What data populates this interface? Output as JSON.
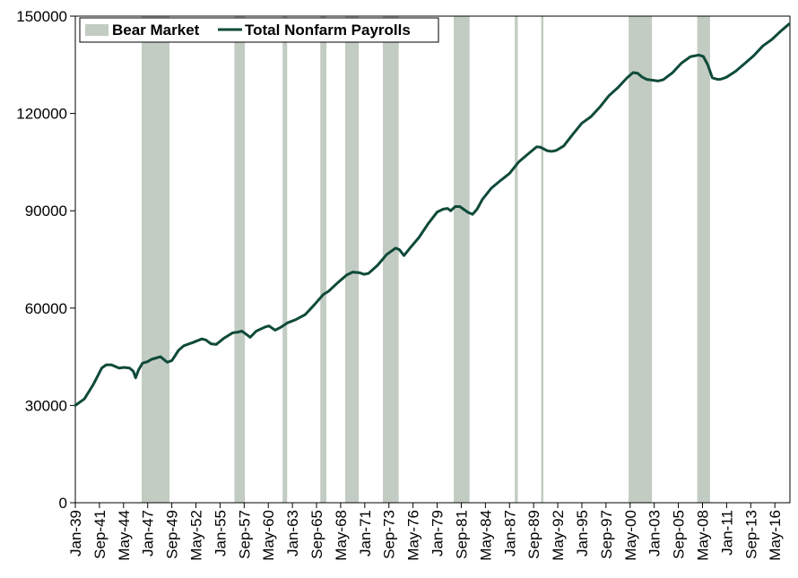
{
  "chart_data": {
    "type": "line",
    "title": "",
    "xlabel": "",
    "ylabel": "",
    "ylim": [
      0,
      150000
    ],
    "y_ticks": [
      0,
      30000,
      60000,
      90000,
      120000,
      150000
    ],
    "y_tick_labels": [
      "0",
      "30000",
      "60000",
      "90000",
      "120000",
      "150000"
    ],
    "x_range": [
      "1939-01",
      "2018-01"
    ],
    "x_ticks": [
      "1939-01",
      "1941-09",
      "1944-05",
      "1947-01",
      "1949-09",
      "1952-05",
      "1955-01",
      "1957-09",
      "1960-05",
      "1963-01",
      "1965-09",
      "1968-05",
      "1971-01",
      "1973-09",
      "1976-05",
      "1979-01",
      "1981-09",
      "1984-05",
      "1987-01",
      "1989-09",
      "1992-05",
      "1995-01",
      "1997-09",
      "2000-05",
      "2003-01",
      "2005-09",
      "2008-05",
      "2011-01",
      "2013-09",
      "2016-05"
    ],
    "x_tick_labels": [
      "Jan-39",
      "Sep-41",
      "May-44",
      "Jan-47",
      "Sep-49",
      "May-52",
      "Jan-55",
      "Sep-57",
      "May-60",
      "Jan-63",
      "Sep-65",
      "May-68",
      "Jan-71",
      "Sep-73",
      "May-76",
      "Jan-79",
      "Sep-81",
      "May-84",
      "Jan-87",
      "Sep-89",
      "May-92",
      "Jan-95",
      "Sep-97",
      "May-00",
      "Jan-03",
      "Sep-05",
      "May-08",
      "Jan-11",
      "Sep-13",
      "May-16"
    ],
    "grid": false,
    "legend_position": "top-left",
    "legend": [
      {
        "label": "Bear Market",
        "kind": "area",
        "color": "#c2ccc2"
      },
      {
        "label": "Total Nonfarm Payrolls",
        "kind": "line",
        "color": "#0f4a3a"
      }
    ],
    "bear_markets": [
      {
        "start": "1946-05",
        "end": "1949-06"
      },
      {
        "start": "1956-08",
        "end": "1957-10"
      },
      {
        "start": "1961-12",
        "end": "1962-06"
      },
      {
        "start": "1966-02",
        "end": "1966-10"
      },
      {
        "start": "1968-11",
        "end": "1970-05"
      },
      {
        "start": "1973-01",
        "end": "1974-10"
      },
      {
        "start": "1980-11",
        "end": "1982-08"
      },
      {
        "start": "1987-08",
        "end": "1987-12"
      },
      {
        "start": "1990-07",
        "end": "1990-10"
      },
      {
        "start": "2000-03",
        "end": "2002-10"
      },
      {
        "start": "2007-10",
        "end": "2009-03"
      }
    ],
    "series": [
      {
        "name": "Total Nonfarm Payrolls",
        "x": [
          "1939-01",
          "1940-01",
          "1941-01",
          "1941-12",
          "1942-06",
          "1943-01",
          "1943-11",
          "1944-06",
          "1945-01",
          "1945-06",
          "1945-09",
          "1946-01",
          "1946-06",
          "1947-01",
          "1947-06",
          "1948-06",
          "1949-03",
          "1949-09",
          "1950-01",
          "1950-06",
          "1951-01",
          "1952-01",
          "1953-01",
          "1953-06",
          "1954-01",
          "1954-08",
          "1955-06",
          "1956-06",
          "1957-01",
          "1957-06",
          "1958-01",
          "1958-05",
          "1959-01",
          "1960-01",
          "1960-06",
          "1961-02",
          "1961-09",
          "1962-06",
          "1963-06",
          "1964-06",
          "1965-06",
          "1966-06",
          "1967-01",
          "1968-01",
          "1969-01",
          "1969-09",
          "1970-06",
          "1970-12",
          "1971-06",
          "1972-06",
          "1973-06",
          "1974-06",
          "1974-11",
          "1975-05",
          "1976-01",
          "1977-01",
          "1978-01",
          "1979-01",
          "1979-09",
          "1980-03",
          "1980-07",
          "1981-01",
          "1981-07",
          "1982-06",
          "1982-12",
          "1983-06",
          "1984-01",
          "1985-01",
          "1986-01",
          "1987-01",
          "1988-01",
          "1989-01",
          "1990-01",
          "1990-06",
          "1991-03",
          "1991-09",
          "1992-03",
          "1993-01",
          "1994-01",
          "1995-01",
          "1996-01",
          "1997-01",
          "1998-01",
          "1999-01",
          "2000-01",
          "2000-09",
          "2001-03",
          "2001-09",
          "2002-03",
          "2002-09",
          "2003-06",
          "2004-01",
          "2005-01",
          "2006-01",
          "2007-01",
          "2007-12",
          "2008-06",
          "2008-12",
          "2009-06",
          "2010-01",
          "2010-06",
          "2011-01",
          "2012-01",
          "2013-01",
          "2014-01",
          "2015-01",
          "2016-01",
          "2017-01",
          "2017-12"
        ],
        "values": [
          30000,
          32000,
          36500,
          41500,
          42500,
          42500,
          41500,
          41700,
          41500,
          40500,
          38500,
          41000,
          43000,
          43500,
          44200,
          45000,
          43300,
          43800,
          45200,
          47000,
          48400,
          49400,
          50500,
          50200,
          49000,
          48800,
          50700,
          52400,
          52600,
          52900,
          51700,
          51000,
          52900,
          54200,
          54500,
          53200,
          54000,
          55400,
          56500,
          58000,
          61000,
          64200,
          65200,
          67800,
          70200,
          71100,
          70900,
          70400,
          70700,
          73200,
          76500,
          78500,
          78000,
          76200,
          78500,
          81800,
          86000,
          89600,
          90500,
          90700,
          90000,
          91300,
          91300,
          89500,
          88900,
          90500,
          93500,
          97000,
          99300,
          101500,
          105000,
          107400,
          109700,
          109600,
          108500,
          108300,
          108600,
          110000,
          113600,
          117000,
          119000,
          122000,
          125500,
          128000,
          131000,
          132600,
          132400,
          131200,
          130500,
          130300,
          130000,
          130400,
          132500,
          135500,
          137500,
          138000,
          137600,
          135000,
          131000,
          130500,
          130600,
          131200,
          133000,
          135400,
          137800,
          140800,
          142800,
          145400,
          147600
        ]
      }
    ]
  }
}
